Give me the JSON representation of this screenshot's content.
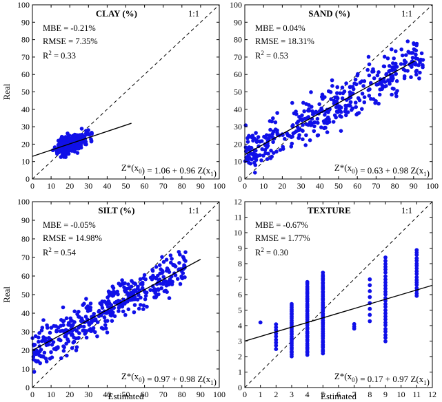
{
  "chart_data": [
    {
      "type": "scatter",
      "title": "CLAY (%)",
      "identity_label": "1:1",
      "xlabel": "",
      "ylabel": "Real",
      "xlim": [
        0,
        100
      ],
      "ylim": [
        0,
        100
      ],
      "xticks": [
        0,
        10,
        20,
        30,
        40,
        50,
        60,
        70,
        80,
        90,
        100
      ],
      "yticks": [
        0,
        10,
        20,
        30,
        40,
        50,
        60,
        70,
        80,
        90,
        100
      ],
      "stats": [
        "MBE = -0.21%",
        "RMSE = 7.35%",
        "R2 = 0.33"
      ],
      "equation": "Z*(x0) = 1.06 + 0.96 Z(x1)",
      "regression": {
        "x_start": 0,
        "x_end": 53,
        "y_start": 13.0,
        "y_end": 32.0
      },
      "cloud": {
        "seed": 11,
        "n": 330,
        "xmin": 7,
        "xmax": 54,
        "xmode": 18,
        "slope": 0.36,
        "intercept": 13.0,
        "noise": 4.3,
        "ymin": 10,
        "ymax": 42
      }
    },
    {
      "type": "scatter",
      "title": "SAND (%)",
      "identity_label": "1:1",
      "xlabel": "",
      "ylabel": "",
      "xlim": [
        0,
        100
      ],
      "ylim": [
        0,
        100
      ],
      "xticks": [
        0,
        10,
        20,
        30,
        40,
        50,
        60,
        70,
        80,
        90,
        100
      ],
      "yticks": [
        0,
        10,
        20,
        30,
        40,
        50,
        60,
        70,
        80,
        90,
        100
      ],
      "stats": [
        "MBE = 0.04%",
        "RMSE = 18.31%",
        "R2 = 0.53"
      ],
      "equation": "Z*(x0) = 0.63 + 0.98 Z(x1)",
      "regression": {
        "x_start": 0,
        "x_end": 91,
        "y_start": 14.0,
        "y_end": 68.0
      },
      "cloud": {
        "seed": 23,
        "n": 400,
        "xmin": 0,
        "xmax": 95,
        "xmode": 0,
        "slope": 0.59,
        "intercept": 14.0,
        "noise": 11.0,
        "ymin": 0,
        "ymax": 79
      }
    },
    {
      "type": "scatter",
      "title": "SILT (%)",
      "identity_label": "1:1",
      "xlabel": "Estimated",
      "ylabel": "Real",
      "xlim": [
        0,
        100
      ],
      "ylim": [
        0,
        100
      ],
      "xticks": [
        0,
        10,
        20,
        30,
        40,
        50,
        60,
        70,
        80,
        90,
        100
      ],
      "yticks": [
        0,
        10,
        20,
        30,
        40,
        50,
        60,
        70,
        80,
        90,
        100
      ],
      "stats": [
        "MBE = -0.05%",
        "RMSE = 14.98%",
        "R2 = 0.54"
      ],
      "equation": "Z*(x0) = 0.97 + 0.98 Z(x1)",
      "regression": {
        "x_start": 0,
        "x_end": 90,
        "y_start": 20.0,
        "y_end": 69.0
      },
      "cloud": {
        "seed": 37,
        "n": 420,
        "xmin": 0,
        "xmax": 82,
        "xmode": 0,
        "slope": 0.55,
        "intercept": 20.0,
        "noise": 9.5,
        "ymin": 6,
        "ymax": 73
      }
    },
    {
      "type": "scatter",
      "title": "TEXTURE",
      "identity_label": "1:1",
      "xlabel": "Estimated",
      "ylabel": "",
      "xlim": [
        0,
        12
      ],
      "ylim": [
        0,
        12
      ],
      "xticks": [
        0,
        1,
        2,
        3,
        4,
        5,
        6,
        7,
        8,
        9,
        10,
        11,
        12
      ],
      "yticks": [
        0,
        1,
        2,
        3,
        4,
        5,
        6,
        7,
        8,
        9,
        10,
        11,
        12
      ],
      "stats": [
        "MBE = -0.67%",
        "RMSE = 1.77%",
        "R2 = 0.30"
      ],
      "equation": "Z*(x0) = 0.17 + 0.97 Z(x1)",
      "regression": {
        "x_start": 0,
        "x_end": 12,
        "y_start": 3.0,
        "y_end": 6.6
      },
      "columns": [
        {
          "x": 1,
          "ymin": 4.2,
          "ymax": 4.2,
          "n": 1
        },
        {
          "x": 2,
          "ymin": 2.5,
          "ymax": 4.1,
          "n": 9
        },
        {
          "x": 3,
          "ymin": 2.0,
          "ymax": 5.4,
          "n": 30
        },
        {
          "x": 4,
          "ymin": 2.1,
          "ymax": 6.8,
          "n": 38
        },
        {
          "x": 5,
          "ymin": 2.2,
          "ymax": 7.4,
          "n": 45
        },
        {
          "x": 7,
          "ymin": 3.8,
          "ymax": 4.1,
          "n": 3
        },
        {
          "x": 8,
          "ymin": 4.3,
          "ymax": 7.0,
          "n": 8
        },
        {
          "x": 9,
          "ymin": 3.0,
          "ymax": 8.4,
          "n": 28
        },
        {
          "x": 11,
          "ymin": 5.9,
          "ymax": 8.9,
          "n": 18
        }
      ]
    }
  ],
  "colors": {
    "points": "#1010e8",
    "axes": "#000000",
    "regression": "#000000",
    "identity": "#000000"
  }
}
